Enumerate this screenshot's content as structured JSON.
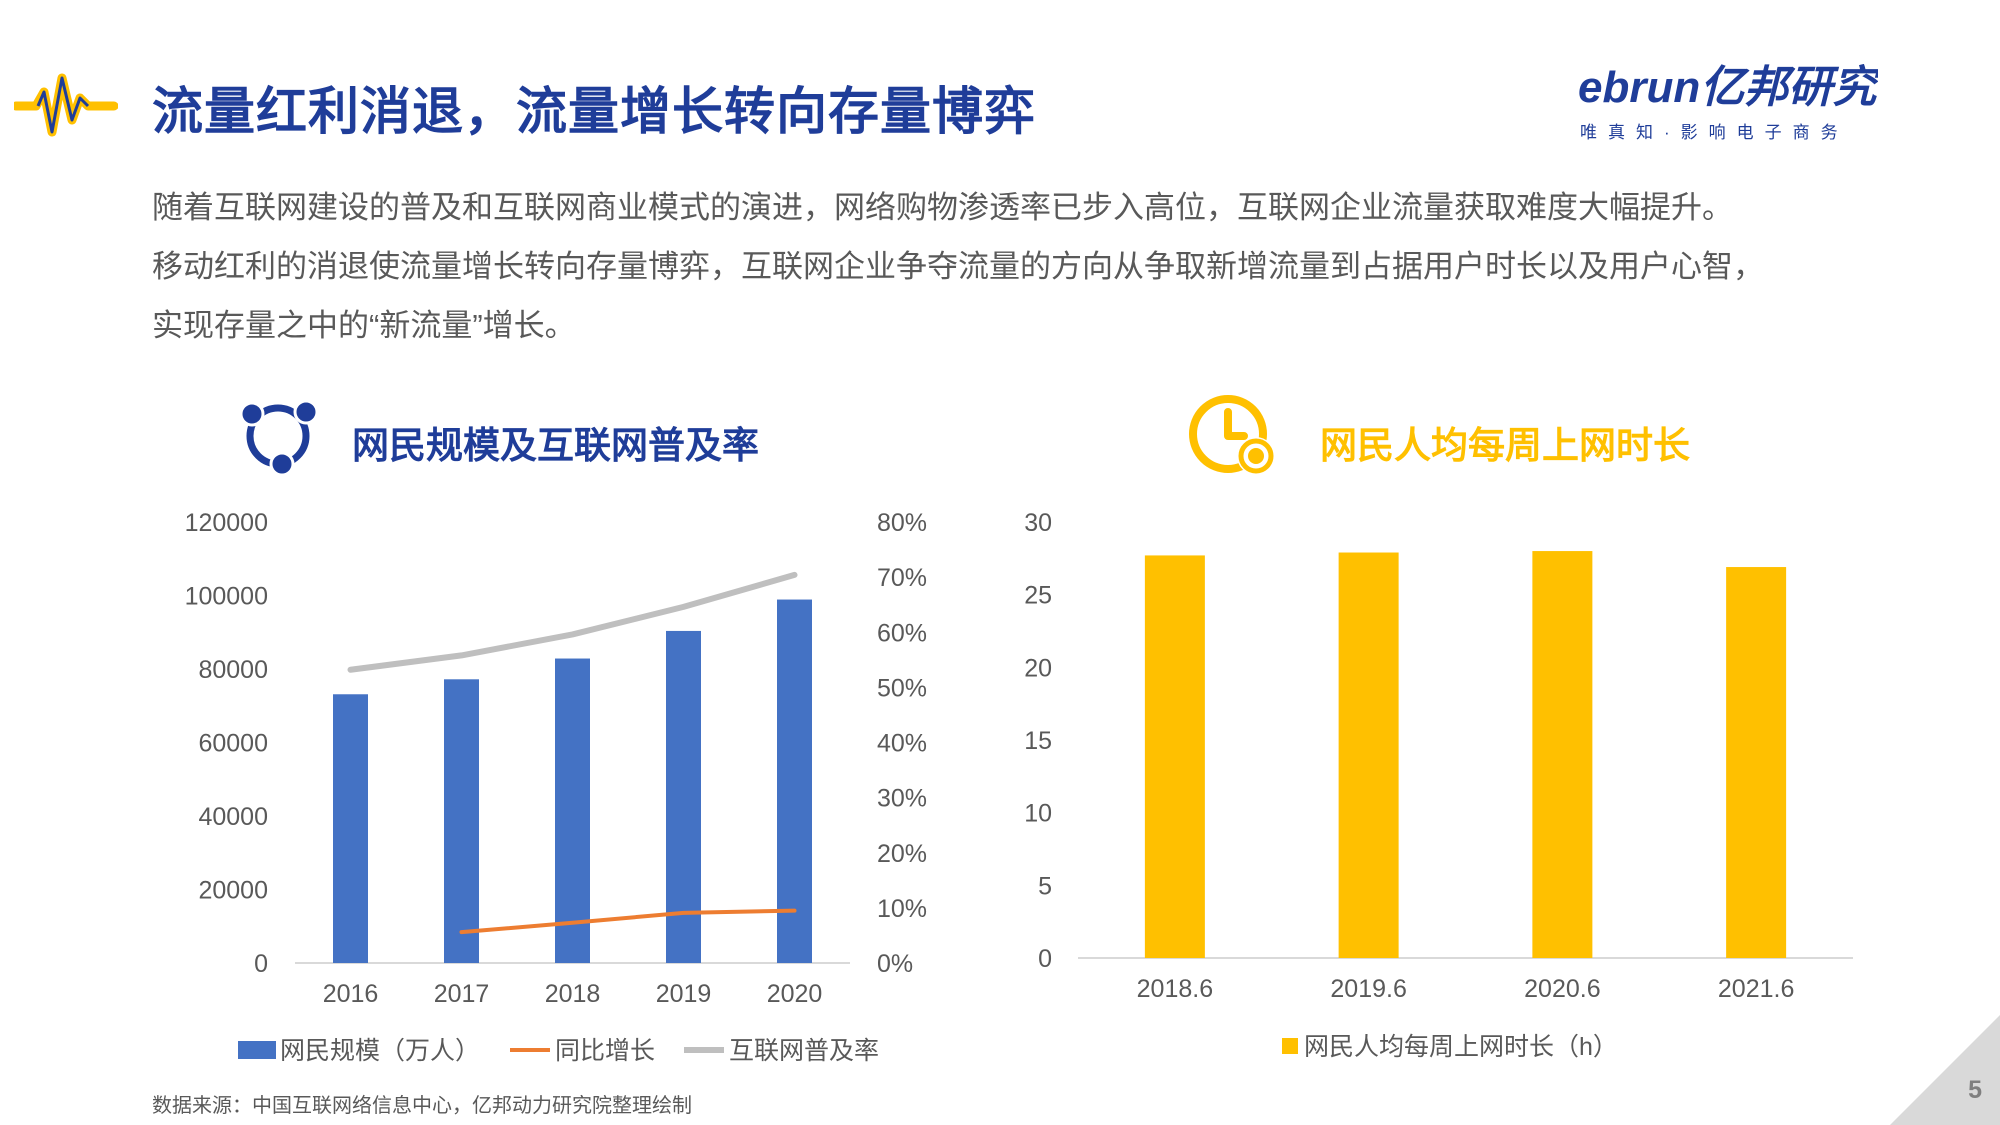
{
  "header": {
    "title": "流量红利消退，流量增长转向存量博弈",
    "brand": {
      "logo_text": "ebrun亿邦研究院",
      "tagline": "唯真知·影响电子商务"
    },
    "brand_color": "#1F3D99",
    "accent_color": "#FFC000"
  },
  "intro": {
    "lines": [
      "随着互联网建设的普及和互联网商业模式的演进，网络购物渗透率已步入高位，互联网企业流量获取难度大幅提升。",
      "移动红利的消退使流量增长转向存量博弈，互联网企业争夺流量的方向从争取新增流量到占据用户时长以及用户心智，",
      "实现存量之中的“新流量”增长。"
    ]
  },
  "left_section": {
    "title": "网民规模及互联网普及率",
    "icon": "network-nodes-icon"
  },
  "right_section": {
    "title": "网民人均每周上网时长",
    "icon": "clock-icon"
  },
  "chart_data": [
    {
      "type": "bar",
      "categories": [
        "2016",
        "2017",
        "2018",
        "2019",
        "2020"
      ],
      "series": [
        {
          "name": "网民规模（万人）",
          "type": "bar",
          "axis": "left",
          "color": "#4472C4",
          "values": [
            73125,
            77198,
            82851,
            90359,
            98899
          ]
        },
        {
          "name": "同比增长",
          "type": "line",
          "axis": "right",
          "color": "#ED7D31",
          "values": [
            null,
            0.056,
            0.073,
            0.091,
            0.095
          ]
        },
        {
          "name": "互联网普及率",
          "type": "line",
          "axis": "right",
          "color": "#BFBFBF",
          "values": [
            0.532,
            0.558,
            0.596,
            0.646,
            0.704
          ]
        }
      ],
      "ylim": [
        0,
        120000
      ],
      "yticks": [
        "0",
        "20000",
        "40000",
        "60000",
        "80000",
        "100000",
        "120000"
      ],
      "y2lim": [
        0,
        0.8
      ],
      "y2ticks": [
        "0%",
        "10%",
        "20%",
        "30%",
        "40%",
        "50%",
        "60%",
        "70%",
        "80%"
      ],
      "legend_position": "bottom",
      "grid": false
    },
    {
      "type": "bar",
      "categories": [
        "2018.6",
        "2019.6",
        "2020.6",
        "2021.6"
      ],
      "series": [
        {
          "name": "网民人均每周上网时长（h）",
          "color": "#FFC000",
          "values": [
            27.7,
            27.9,
            28.0,
            26.9
          ]
        }
      ],
      "ylim": [
        0,
        30
      ],
      "yticks": [
        "0",
        "5",
        "10",
        "15",
        "20",
        "25",
        "30"
      ],
      "legend_position": "bottom",
      "grid": false
    }
  ],
  "footer": {
    "source": "数据来源：中国互联网络信息中心，亿邦动力研究院整理绘制",
    "page_number": "5"
  }
}
